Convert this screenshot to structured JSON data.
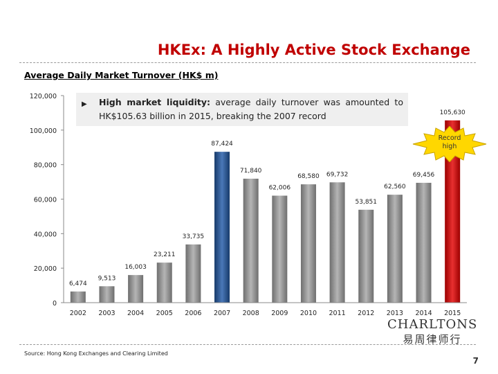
{
  "title": "HKEx: A Highly Active Stock Exchange",
  "subtitle": "Average Daily Market Turnover (HK$ m)",
  "callout": {
    "lead": "High market liquidity:",
    "body": " average daily turnover was amounted to HK$105.63 billion in 2015, breaking the 2007 record"
  },
  "badge": {
    "line1": "Record",
    "line2": "high"
  },
  "logo": {
    "english": "CHARLTONS",
    "chinese": "易周律师行"
  },
  "source": "Source: Hong Kong Exchanges and Clearing Limited",
  "page_number": "7",
  "colors": {
    "title": "#c00000",
    "bar_default": "#7f7f7f",
    "bar_2007": "#1f4e8c",
    "bar_2015": "#c00000",
    "badge_fill": "#ffd700"
  },
  "chart_data": {
    "type": "bar",
    "categories": [
      "2002",
      "2003",
      "2004",
      "2005",
      "2006",
      "2007",
      "2008",
      "2009",
      "2010",
      "2011",
      "2012",
      "2013",
      "2014",
      "2015"
    ],
    "values": [
      6474,
      9513,
      16003,
      23211,
      33735,
      87424,
      71840,
      62006,
      68580,
      69732,
      53851,
      62560,
      69456,
      105630
    ],
    "value_labels": [
      "6,474",
      "9,513",
      "16,003",
      "23,211",
      "33,735",
      "87,424",
      "71,840",
      "62,006",
      "68,580",
      "69,732",
      "53,851",
      "62,560",
      "69,456",
      "105,630"
    ],
    "yticks": [
      "0",
      "20,000",
      "40,000",
      "60,000",
      "80,000",
      "100,000",
      "120,000"
    ],
    "ylim": [
      0,
      120000
    ],
    "highlight": {
      "2007": "#1f4e8c",
      "2015": "#c00000"
    },
    "grid": false
  }
}
